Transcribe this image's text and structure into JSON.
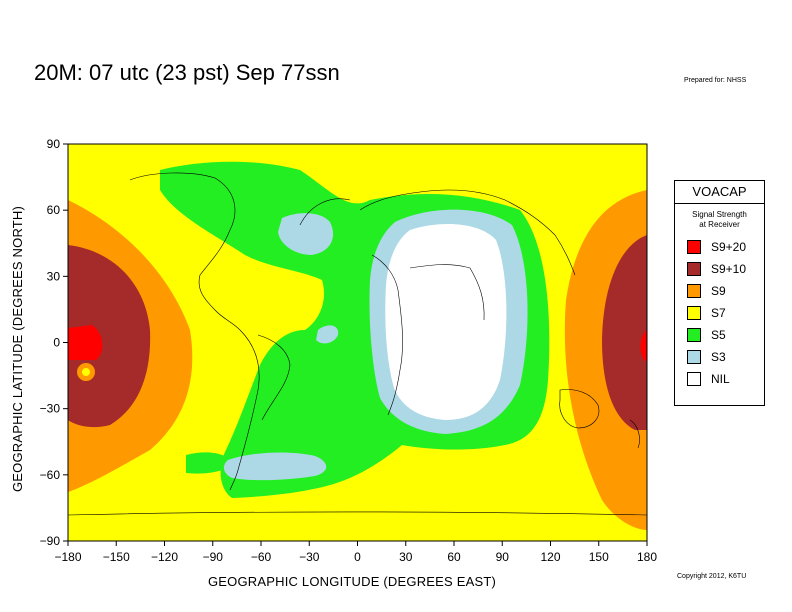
{
  "title": "20M:  07 utc (23 pst) Sep 77ssn",
  "prepared_for": "Prepared for: NHSS",
  "copyright": "Copyright 2012, K6TU",
  "axes": {
    "xlabel": "GEOGRAPHIC LONGITUDE (DEGREES EAST)",
    "ylabel": "GEOGRAPHIC LATITUDE (DEGREES NORTH)",
    "xticks": [
      "−180",
      "−150",
      "−120",
      "−90",
      "−60",
      "−30",
      "0",
      "30",
      "60",
      "90",
      "120",
      "150",
      "180"
    ],
    "yticks": [
      "90",
      "60",
      "30",
      "0",
      "−30",
      "−60",
      "−90"
    ],
    "xlim": [
      -180,
      180
    ],
    "ylim": [
      -90,
      90
    ]
  },
  "legend": {
    "title": "VOACAP",
    "subtitle_line1": "Signal Strength",
    "subtitle_line2": "at Receiver",
    "items": [
      {
        "label": "S9+20",
        "color": "#ff0000"
      },
      {
        "label": "S9+10",
        "color": "#a52a2a"
      },
      {
        "label": "S9",
        "color": "#ff9900"
      },
      {
        "label": "S7",
        "color": "#ffff00"
      },
      {
        "label": "S5",
        "color": "#22ee22"
      },
      {
        "label": "S3",
        "color": "#add8e6"
      },
      {
        "label": "NIL",
        "color": "#ffffff"
      }
    ]
  }
}
